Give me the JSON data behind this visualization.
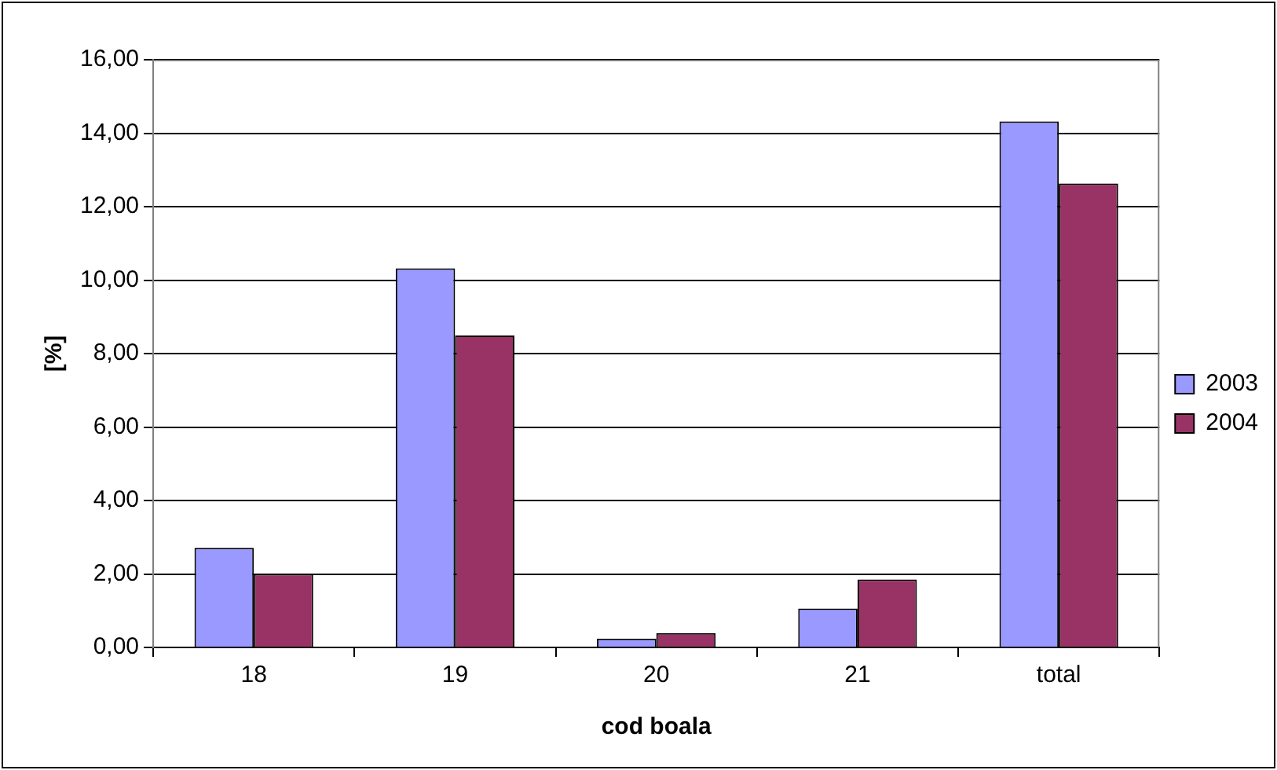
{
  "chart_data": {
    "type": "bar",
    "xlabel": "cod boala",
    "ylabel": "[%]",
    "categories": [
      "18",
      "19",
      "20",
      "21",
      "total"
    ],
    "series": [
      {
        "name": "2003",
        "color": "#9999ff",
        "values": [
          2.71,
          10.32,
          0.24,
          1.06,
          14.32
        ]
      },
      {
        "name": "2004",
        "color": "#993366",
        "values": [
          2.0,
          8.49,
          0.39,
          1.85,
          12.63
        ]
      }
    ],
    "ylim": [
      0,
      16
    ],
    "yticks": [
      {
        "value": 0,
        "label": "0,00"
      },
      {
        "value": 2,
        "label": "2,00"
      },
      {
        "value": 4,
        "label": "4,00"
      },
      {
        "value": 6,
        "label": "6,00"
      },
      {
        "value": 8,
        "label": "8,00"
      },
      {
        "value": 10,
        "label": "10,00"
      },
      {
        "value": 12,
        "label": "12,00"
      },
      {
        "value": 14,
        "label": "14,00"
      },
      {
        "value": 16,
        "label": "16,00"
      }
    ],
    "grid": "y",
    "legend": "right"
  }
}
